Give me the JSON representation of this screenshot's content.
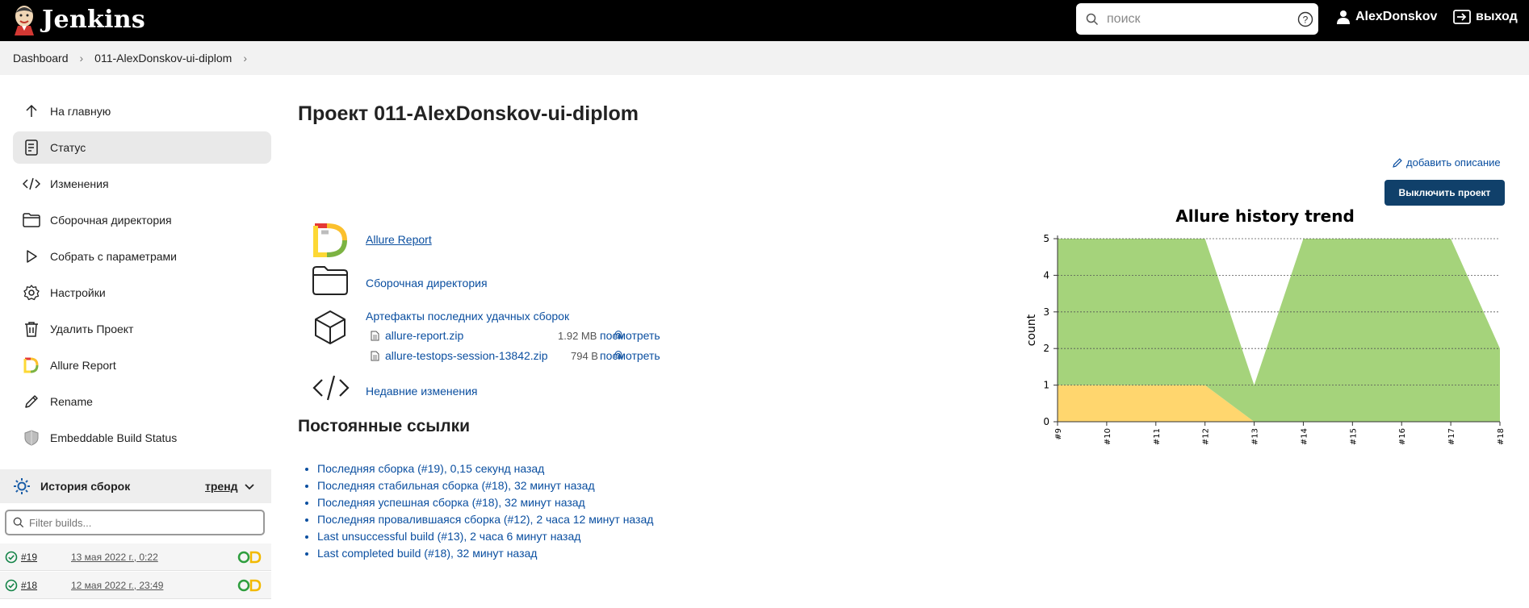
{
  "header": {
    "app_name": "Jenkins",
    "search_placeholder": "поиск",
    "user": "AlexDonskov",
    "logout": "выход"
  },
  "breadcrumb": [
    "Dashboard",
    "011-AlexDonskov-ui-diplom"
  ],
  "sidebar": {
    "items": [
      {
        "label": "На главную",
        "icon": "arrow-up-icon"
      },
      {
        "label": "Статус",
        "icon": "document-icon"
      },
      {
        "label": "Изменения",
        "icon": "code-icon"
      },
      {
        "label": "Сборочная директория",
        "icon": "folder-icon"
      },
      {
        "label": "Собрать с параметрами",
        "icon": "play-icon"
      },
      {
        "label": "Настройки",
        "icon": "gear-icon"
      },
      {
        "label": "Удалить Проект",
        "icon": "trash-icon"
      },
      {
        "label": "Allure Report",
        "icon": "allure-icon"
      },
      {
        "label": "Rename",
        "icon": "pencil-icon"
      },
      {
        "label": "Embeddable Build Status",
        "icon": "shield-icon"
      }
    ],
    "active_index": 1
  },
  "history": {
    "title": "История сборок",
    "trend": "тренд",
    "filter_placeholder": "Filter builds...",
    "builds": [
      {
        "number": "#19",
        "date": "13 мая 2022 г., 0:22"
      },
      {
        "number": "#18",
        "date": "12 мая 2022 г., 23:49"
      }
    ]
  },
  "main": {
    "title": "Проект 011-AlexDonskov-ui-diplom",
    "add_description": "добавить описание",
    "disable_button": "Выключить проект",
    "links": {
      "allure": "Allure Report",
      "workspace": "Сборочная директория",
      "artifacts": "Артефакты последних удачных сборок",
      "changes": "Недавние изменения"
    },
    "artifacts": [
      {
        "name": "allure-report.zip",
        "size": "1.92 MB",
        "view": "посмотреть"
      },
      {
        "name": "allure-testops-session-13842.zip",
        "size": "794 B",
        "view": "посмотреть"
      }
    ],
    "permalinks_title": "Постоянные ссылки",
    "permalinks": [
      "Последняя сборка (#19), 0,15 секунд назад",
      "Последняя стабильная сборка (#18), 32 минут назад",
      "Последняя успешная сборка (#18), 32 минут назад",
      "Последняя провалившаяся сборка (#12), 2 часа 12 минут назад",
      "Last unsuccessful build (#13), 2 часа 6 минут назад",
      "Last completed build (#18), 32 минут назад"
    ]
  },
  "chart_data": {
    "type": "area",
    "title": "Allure history trend",
    "ylabel": "count",
    "xlabel": "",
    "categories": [
      "#9",
      "#10",
      "#11",
      "#12",
      "#13",
      "#14",
      "#15",
      "#16",
      "#17",
      "#18"
    ],
    "ylim": [
      0,
      5
    ],
    "yticks": [
      0,
      1,
      2,
      3,
      4,
      5
    ],
    "grid": true,
    "series": [
      {
        "color": "#ffd66e",
        "values": [
          1,
          1,
          1,
          1,
          0,
          0,
          0,
          0,
          0,
          0
        ]
      },
      {
        "color": "#a5d37b",
        "values": [
          4,
          4,
          4,
          4,
          1,
          5,
          5,
          5,
          5,
          2
        ]
      }
    ]
  }
}
